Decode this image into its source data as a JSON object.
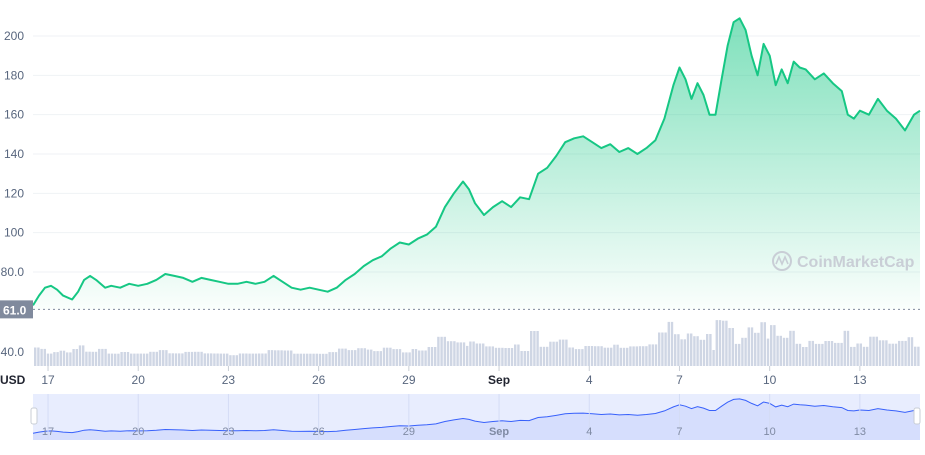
{
  "chart_data": {
    "type": "area",
    "title": "",
    "xlabel": "",
    "ylabel": "",
    "currency_label": "USD",
    "watermark": "CoinMarketCap",
    "baseline_label": "61.0",
    "baseline_value": 61.0,
    "ylim": [
      45,
      213
    ],
    "y_ticks": [
      {
        "value": 200,
        "label": "200"
      },
      {
        "value": 180,
        "label": "180"
      },
      {
        "value": 160,
        "label": "160"
      },
      {
        "value": 140,
        "label": "140"
      },
      {
        "value": 120,
        "label": "120"
      },
      {
        "value": 100,
        "label": "100"
      },
      {
        "value": 80,
        "label": "80.0"
      },
      {
        "value": 40,
        "label": "40.0"
      }
    ],
    "xlim": [
      16.5,
      46
    ],
    "x_ticks": [
      {
        "day": 17,
        "label": "17"
      },
      {
        "day": 20,
        "label": "20"
      },
      {
        "day": 23,
        "label": "23"
      },
      {
        "day": 26,
        "label": "26"
      },
      {
        "day": 29,
        "label": "29"
      },
      {
        "day": 32,
        "label": "Sep",
        "bold": true
      },
      {
        "day": 35,
        "label": "4"
      },
      {
        "day": 38,
        "label": "7"
      },
      {
        "day": 41,
        "label": "10"
      },
      {
        "day": 44,
        "label": "13"
      }
    ],
    "colors": {
      "price_line": "#16c784",
      "volume_bars": "#cfd6e4",
      "navigator_line": "#3861fb",
      "navigator_fill": "#e8edfe",
      "grid": "#eff2f5",
      "axis_text": "#58667e",
      "baseline_label_bg": "#808a9d"
    },
    "series": [
      {
        "points": [
          [
            16.5,
            63
          ],
          [
            16.7,
            68
          ],
          [
            16.9,
            72
          ],
          [
            17.1,
            73
          ],
          [
            17.3,
            71
          ],
          [
            17.5,
            68
          ],
          [
            17.8,
            66
          ],
          [
            18.0,
            70
          ],
          [
            18.2,
            76
          ],
          [
            18.4,
            78
          ],
          [
            18.6,
            76
          ],
          [
            18.9,
            72
          ],
          [
            19.1,
            73
          ],
          [
            19.4,
            72
          ],
          [
            19.7,
            74
          ],
          [
            20.0,
            73
          ],
          [
            20.3,
            74
          ],
          [
            20.6,
            76
          ],
          [
            20.9,
            79
          ],
          [
            21.2,
            78
          ],
          [
            21.5,
            77
          ],
          [
            21.8,
            75
          ],
          [
            22.1,
            77
          ],
          [
            22.4,
            76
          ],
          [
            22.7,
            75
          ],
          [
            23.0,
            74
          ],
          [
            23.3,
            74
          ],
          [
            23.6,
            75
          ],
          [
            23.9,
            74
          ],
          [
            24.2,
            75
          ],
          [
            24.5,
            78
          ],
          [
            24.8,
            75
          ],
          [
            25.1,
            72
          ],
          [
            25.4,
            71
          ],
          [
            25.7,
            72
          ],
          [
            26.0,
            71
          ],
          [
            26.3,
            70
          ],
          [
            26.6,
            72
          ],
          [
            26.9,
            76
          ],
          [
            27.2,
            79
          ],
          [
            27.5,
            83
          ],
          [
            27.8,
            86
          ],
          [
            28.1,
            88
          ],
          [
            28.4,
            92
          ],
          [
            28.7,
            95
          ],
          [
            29.0,
            94
          ],
          [
            29.3,
            97
          ],
          [
            29.6,
            99
          ],
          [
            29.9,
            103
          ],
          [
            30.2,
            113
          ],
          [
            30.5,
            120
          ],
          [
            30.8,
            126
          ],
          [
            31.0,
            122
          ],
          [
            31.2,
            115
          ],
          [
            31.5,
            109
          ],
          [
            31.8,
            113
          ],
          [
            32.1,
            116
          ],
          [
            32.4,
            113
          ],
          [
            32.7,
            118
          ],
          [
            33.0,
            117
          ],
          [
            33.3,
            130
          ],
          [
            33.6,
            133
          ],
          [
            33.9,
            139
          ],
          [
            34.2,
            146
          ],
          [
            34.5,
            148
          ],
          [
            34.8,
            149
          ],
          [
            35.1,
            146
          ],
          [
            35.4,
            143
          ],
          [
            35.7,
            145
          ],
          [
            36.0,
            141
          ],
          [
            36.3,
            143
          ],
          [
            36.6,
            140
          ],
          [
            36.9,
            143
          ],
          [
            37.2,
            147
          ],
          [
            37.5,
            158
          ],
          [
            37.8,
            175
          ],
          [
            38.0,
            184
          ],
          [
            38.2,
            178
          ],
          [
            38.4,
            168
          ],
          [
            38.6,
            176
          ],
          [
            38.8,
            170
          ],
          [
            39.0,
            160
          ],
          [
            39.2,
            160
          ],
          [
            39.4,
            178
          ],
          [
            39.6,
            195
          ],
          [
            39.8,
            207
          ],
          [
            40.0,
            209
          ],
          [
            40.2,
            203
          ],
          [
            40.4,
            190
          ],
          [
            40.6,
            180
          ],
          [
            40.8,
            196
          ],
          [
            41.0,
            190
          ],
          [
            41.2,
            175
          ],
          [
            41.4,
            183
          ],
          [
            41.6,
            176
          ],
          [
            41.8,
            187
          ],
          [
            42.0,
            184
          ],
          [
            42.2,
            183
          ],
          [
            42.5,
            178
          ],
          [
            42.8,
            181
          ],
          [
            43.1,
            176
          ],
          [
            43.4,
            172
          ],
          [
            43.6,
            160
          ],
          [
            43.8,
            158
          ],
          [
            44.0,
            162
          ],
          [
            44.3,
            160
          ],
          [
            44.6,
            168
          ],
          [
            44.9,
            162
          ],
          [
            45.2,
            158
          ],
          [
            45.5,
            152
          ],
          [
            45.8,
            160
          ],
          [
            46.0,
            162
          ]
        ]
      }
    ]
  }
}
